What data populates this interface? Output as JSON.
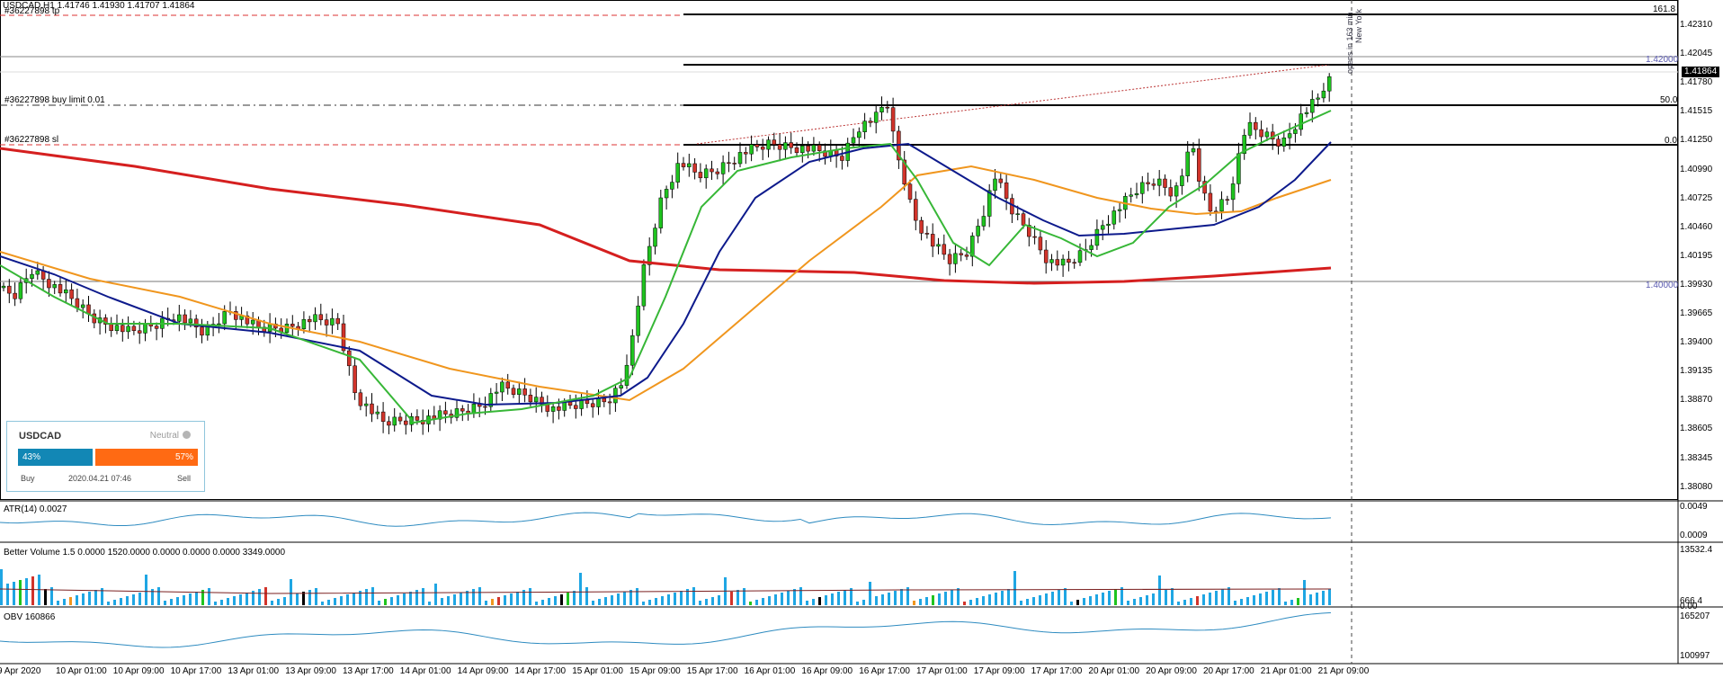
{
  "header": {
    "symbol_line": "USDCAD,H1  1.41746 1.41930 1.41707 1.41864",
    "order_tp": "#36227898 tp",
    "order_buy": "#36227898 buy limit 0.01",
    "order_sl": "#36227898 sl"
  },
  "price_axis": [
    "1.42310",
    "1.42045",
    "1.41780",
    "1.41515",
    "1.41250",
    "1.40990",
    "1.40725",
    "1.40460",
    "1.40195",
    "1.39930",
    "1.39665",
    "1.39400",
    "1.39135",
    "1.38870",
    "1.38605",
    "1.38345",
    "1.38080"
  ],
  "current_price": "1.41864",
  "level_labels": {
    "fib_161": "161.8",
    "fib_50": "50.0",
    "fib_0": "0.0",
    "line_142": "1.42000",
    "line_140": "1.40000"
  },
  "vertical_notes": {
    "opens": "opens in 163 min",
    "session": "New York"
  },
  "indicators": {
    "atr_label": "ATR(14) 0.0027",
    "atr_axis": [
      "0.0049",
      "0.0009"
    ],
    "vol_label": "Better Volume 1.5 0.0000 1520.0000 0.0000 0.0000 0.0000 3349.0000",
    "vol_axis": [
      "13532.4",
      "666.4",
      "0.00"
    ],
    "obv_label": "OBV 160866",
    "obv_axis": [
      "165207",
      "100997"
    ]
  },
  "time_axis": [
    "9 Apr 2020",
    "10 Apr 01:00",
    "10 Apr 09:00",
    "10 Apr 17:00",
    "13 Apr 01:00",
    "13 Apr 09:00",
    "13 Apr 17:00",
    "14 Apr 01:00",
    "14 Apr 09:00",
    "14 Apr 17:00",
    "15 Apr 01:00",
    "15 Apr 09:00",
    "15 Apr 17:00",
    "16 Apr 01:00",
    "16 Apr 09:00",
    "16 Apr 17:00",
    "17 Apr 01:00",
    "17 Apr 09:00",
    "17 Apr 17:00",
    "20 Apr 01:00",
    "20 Apr 09:00",
    "20 Apr 17:00",
    "21 Apr 01:00",
    "21 Apr 09:00"
  ],
  "sentiment": {
    "symbol": "USDCAD",
    "status": "Neutral",
    "buy_pct": "43%",
    "sell_pct": "57%",
    "buy_label": "Buy",
    "sell_label": "Sell",
    "timestamp": "2020.04.21 07:46"
  },
  "colors": {
    "bull": "#1fc41f",
    "bear": "#d1342b",
    "ma_red": "#d51f1f",
    "ma_orange": "#f0961e",
    "ma_navy": "#0d1a8c",
    "ma_green": "#37b737",
    "ind_line": "#2e8bc0",
    "vol_bar": "#1fa6e3"
  }
}
